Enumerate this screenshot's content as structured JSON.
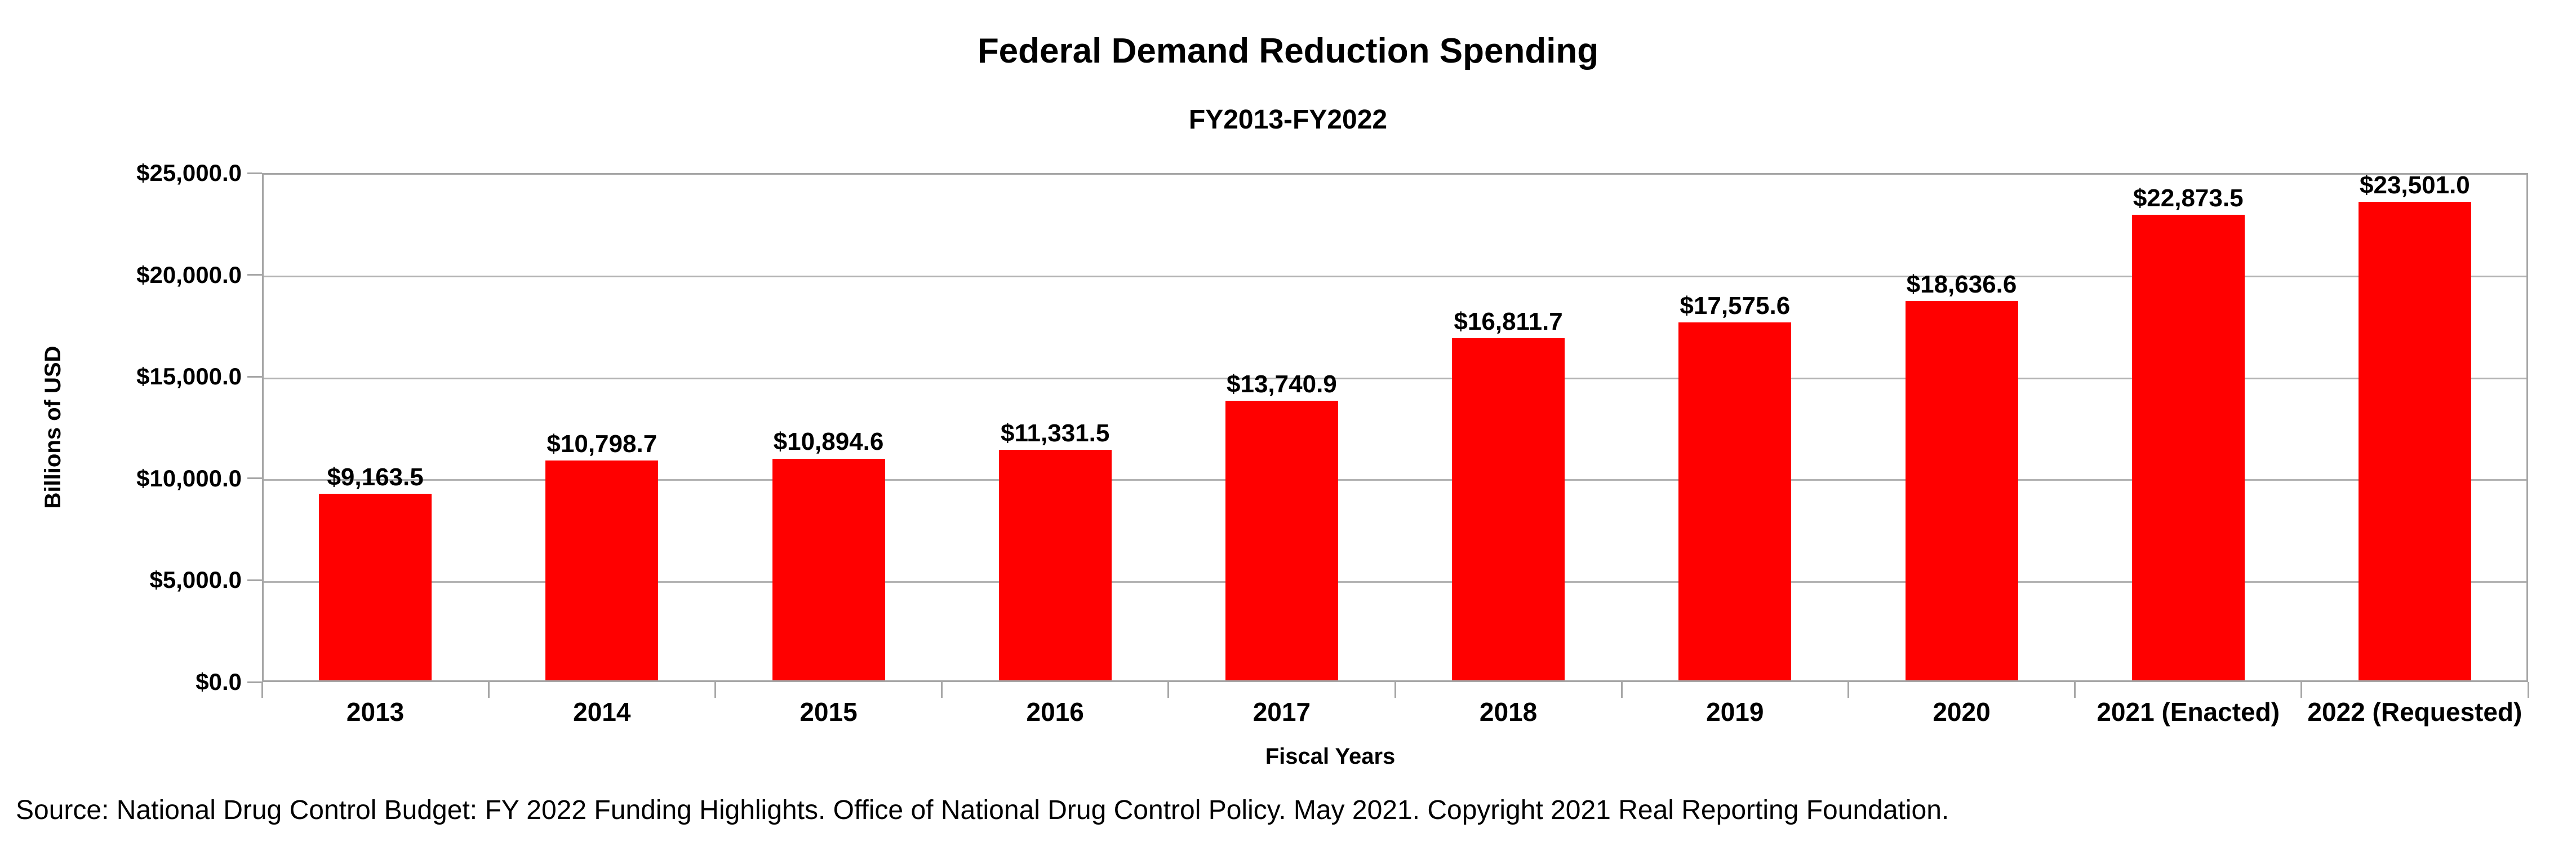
{
  "title": "Federal Demand Reduction Spending",
  "subtitle": "FY2013-FY2022",
  "source_note": "Source: National Drug Control Budget: FY 2022 Funding Highlights. Office of National Drug Control Policy. May 2021. Copyright 2021 Real Reporting Foundation.",
  "chart_data": {
    "type": "bar",
    "title": "Federal Demand Reduction Spending",
    "subtitle": "FY2013-FY2022",
    "xlabel": "Fiscal Years",
    "ylabel": "Billions of USD",
    "categories": [
      "2013",
      "2014",
      "2015",
      "2016",
      "2017",
      "2018",
      "2019",
      "2020",
      "2021 (Enacted)",
      "2022 (Requested)"
    ],
    "values": [
      9163.5,
      10798.7,
      10894.6,
      11331.5,
      13740.9,
      16811.7,
      17575.6,
      18636.6,
      22873.5,
      23501.0
    ],
    "value_labels": [
      "$9,163.5",
      "$10,798.7",
      "$10,894.6",
      "$11,331.5",
      "$13,740.9",
      "$16,811.7",
      "$17,575.6",
      "$18,636.6",
      "$22,873.5",
      "$23,501.0"
    ],
    "ylim": [
      0,
      25000
    ],
    "ytick_interval": 5000,
    "ytick_labels": [
      "$0.0",
      "$5,000.0",
      "$10,000.0",
      "$15,000.0",
      "$20,000.0",
      "$25,000.0"
    ],
    "grid": "horizontal-only",
    "legend": "none",
    "bar_color": "#ff0000",
    "axis_color": "#a6a6a6",
    "gridline_color": "#b3b3b3",
    "text_color": "#000000"
  }
}
